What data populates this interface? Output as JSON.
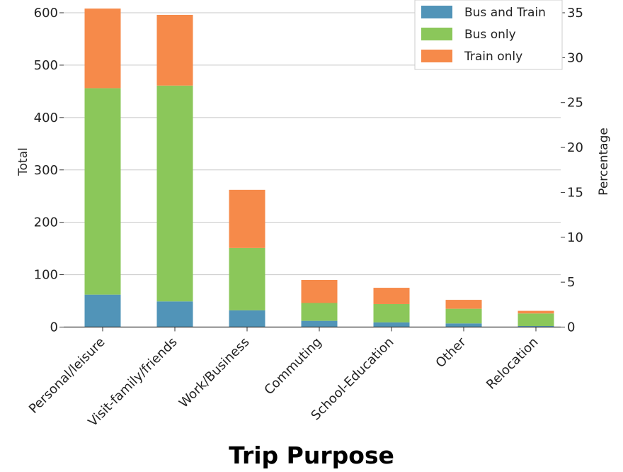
{
  "chart_data": {
    "type": "bar",
    "stacked": true,
    "categories": [
      "Personal/leisure",
      "Visit-family/friends",
      "Work/Business",
      "Commuting",
      "School-Education",
      "Other",
      "Relocation"
    ],
    "series": [
      {
        "name": "Bus and Train",
        "color": "#5194b8",
        "values": [
          62,
          49,
          32,
          12,
          9,
          7,
          2
        ]
      },
      {
        "name": "Bus only",
        "color": "#8bc75a",
        "values": [
          394,
          412,
          119,
          34,
          35,
          28,
          24
        ]
      },
      {
        "name": "Train only",
        "color": "#f68a4a",
        "values": [
          152,
          135,
          111,
          44,
          31,
          17,
          5
        ]
      }
    ],
    "xlabel": "Trip Purpose",
    "ylabel": "Total",
    "y2label": "Percentage",
    "ylim": [
      0,
      600
    ],
    "yticks": [
      0,
      100,
      200,
      300,
      400,
      500,
      600
    ],
    "y2lim": [
      0,
      35
    ],
    "y2ticks": [
      0,
      5,
      10,
      15,
      20,
      25,
      30,
      35
    ],
    "grid": "horizontal",
    "legend_position": "top-right"
  }
}
